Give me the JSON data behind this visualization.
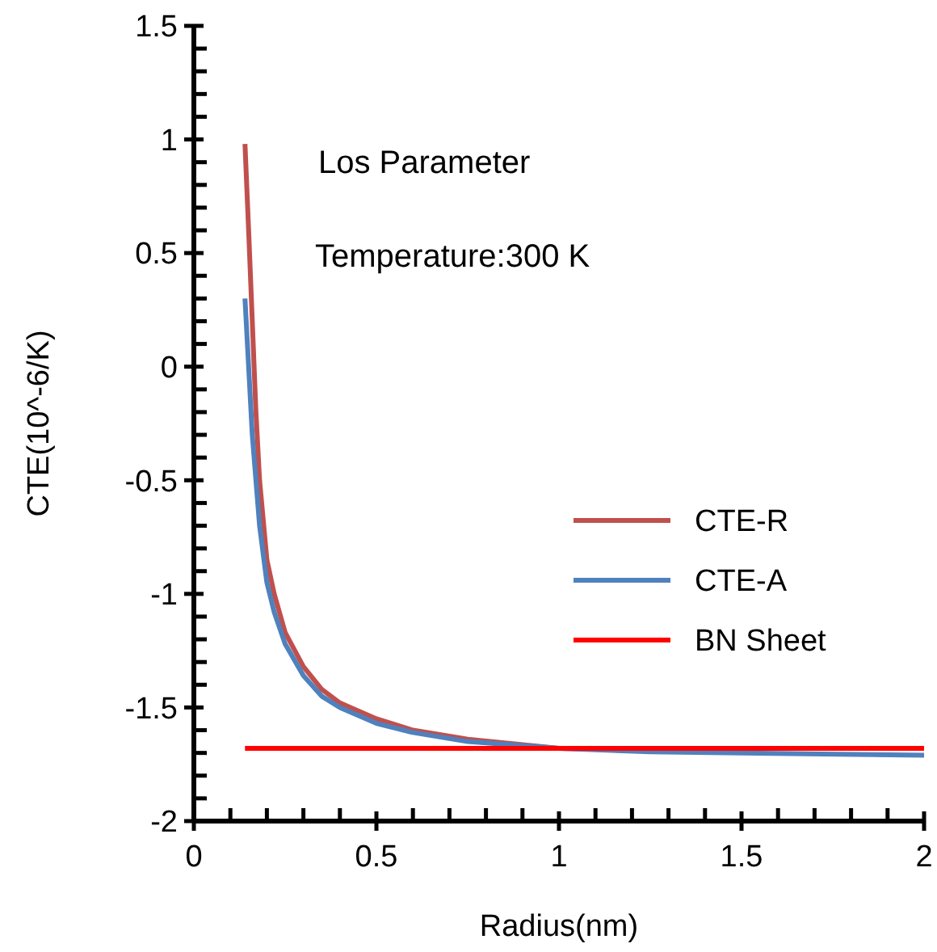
{
  "chart_data": {
    "type": "line",
    "xlabel": "Radius(nm)",
    "ylabel": "CTE(10^-6/K)",
    "annotations": [
      "Los Parameter",
      "Temperature:300 K"
    ],
    "xlim": [
      0,
      2
    ],
    "ylim": [
      -2,
      1.5
    ],
    "xticks": [
      0,
      {
        "value": 0.1,
        "label": null
      },
      {
        "value": 0.2,
        "label": null
      },
      {
        "value": 0.3,
        "label": null
      },
      {
        "value": 0.4,
        "label": null
      },
      0.5,
      {
        "value": 0.6,
        "label": null
      },
      {
        "value": 0.7,
        "label": null
      },
      {
        "value": 0.8,
        "label": null
      },
      {
        "value": 0.9,
        "label": null
      },
      1,
      {
        "value": 1.1,
        "label": null
      },
      {
        "value": 1.2,
        "label": null
      },
      {
        "value": 1.3,
        "label": null
      },
      {
        "value": 1.4,
        "label": null
      },
      1.5,
      {
        "value": 1.6,
        "label": null
      },
      {
        "value": 1.7,
        "label": null
      },
      {
        "value": 1.8,
        "label": null
      },
      {
        "value": 1.9,
        "label": null
      },
      2
    ],
    "yticks": [
      -2,
      {
        "value": -1.9,
        "label": null
      },
      {
        "value": -1.8,
        "label": null
      },
      {
        "value": -1.7,
        "label": null
      },
      {
        "value": -1.6,
        "label": null
      },
      -1.5,
      {
        "value": -1.4,
        "label": null
      },
      {
        "value": -1.3,
        "label": null
      },
      {
        "value": -1.2,
        "label": null
      },
      {
        "value": -1.1,
        "label": null
      },
      -1,
      {
        "value": -0.9,
        "label": null
      },
      {
        "value": -0.8,
        "label": null
      },
      {
        "value": -0.7,
        "label": null
      },
      {
        "value": -0.6,
        "label": null
      },
      -0.5,
      {
        "value": -0.4,
        "label": null
      },
      {
        "value": -0.3,
        "label": null
      },
      {
        "value": -0.2,
        "label": null
      },
      {
        "value": -0.1,
        "label": null
      },
      0,
      {
        "value": 0.1,
        "label": null
      },
      {
        "value": 0.2,
        "label": null
      },
      {
        "value": 0.3,
        "label": null
      },
      {
        "value": 0.4,
        "label": null
      },
      0.5,
      {
        "value": 0.6,
        "label": null
      },
      {
        "value": 0.7,
        "label": null
      },
      {
        "value": 0.8,
        "label": null
      },
      {
        "value": 0.9,
        "label": null
      },
      1,
      {
        "value": 1.1,
        "label": null
      },
      {
        "value": 1.2,
        "label": null
      },
      {
        "value": 1.3,
        "label": null
      },
      {
        "value": 1.4,
        "label": null
      },
      1.5
    ],
    "grid": false,
    "legend": "right",
    "marker": "none",
    "line_style": "solid",
    "series": [
      {
        "name": "CTE-R",
        "color": "#c0504d",
        "x": [
          0.14,
          0.15,
          0.16,
          0.17,
          0.18,
          0.2,
          0.22,
          0.25,
          0.3,
          0.35,
          0.4,
          0.5,
          0.6,
          0.75,
          1,
          1.25
        ],
        "values": [
          0.98,
          0.6,
          0.2,
          -0.2,
          -0.5,
          -0.85,
          -1.0,
          -1.17,
          -1.32,
          -1.42,
          -1.48,
          -1.55,
          -1.6,
          -1.64,
          -1.68,
          -1.69
        ]
      },
      {
        "name": "CTE-A",
        "color": "#4f81bd",
        "x": [
          0.14,
          0.15,
          0.16,
          0.18,
          0.2,
          0.22,
          0.25,
          0.3,
          0.35,
          0.4,
          0.5,
          0.6,
          0.75,
          1,
          1.25,
          1.5,
          2
        ],
        "values": [
          0.3,
          0.0,
          -0.3,
          -0.7,
          -0.95,
          -1.08,
          -1.22,
          -1.36,
          -1.45,
          -1.5,
          -1.57,
          -1.61,
          -1.65,
          -1.68,
          -1.695,
          -1.7,
          -1.71
        ]
      },
      {
        "name": "BN Sheet",
        "color": "#ff0000",
        "x": [
          0.14,
          2
        ],
        "values": [
          -1.68,
          -1.68
        ]
      }
    ]
  }
}
